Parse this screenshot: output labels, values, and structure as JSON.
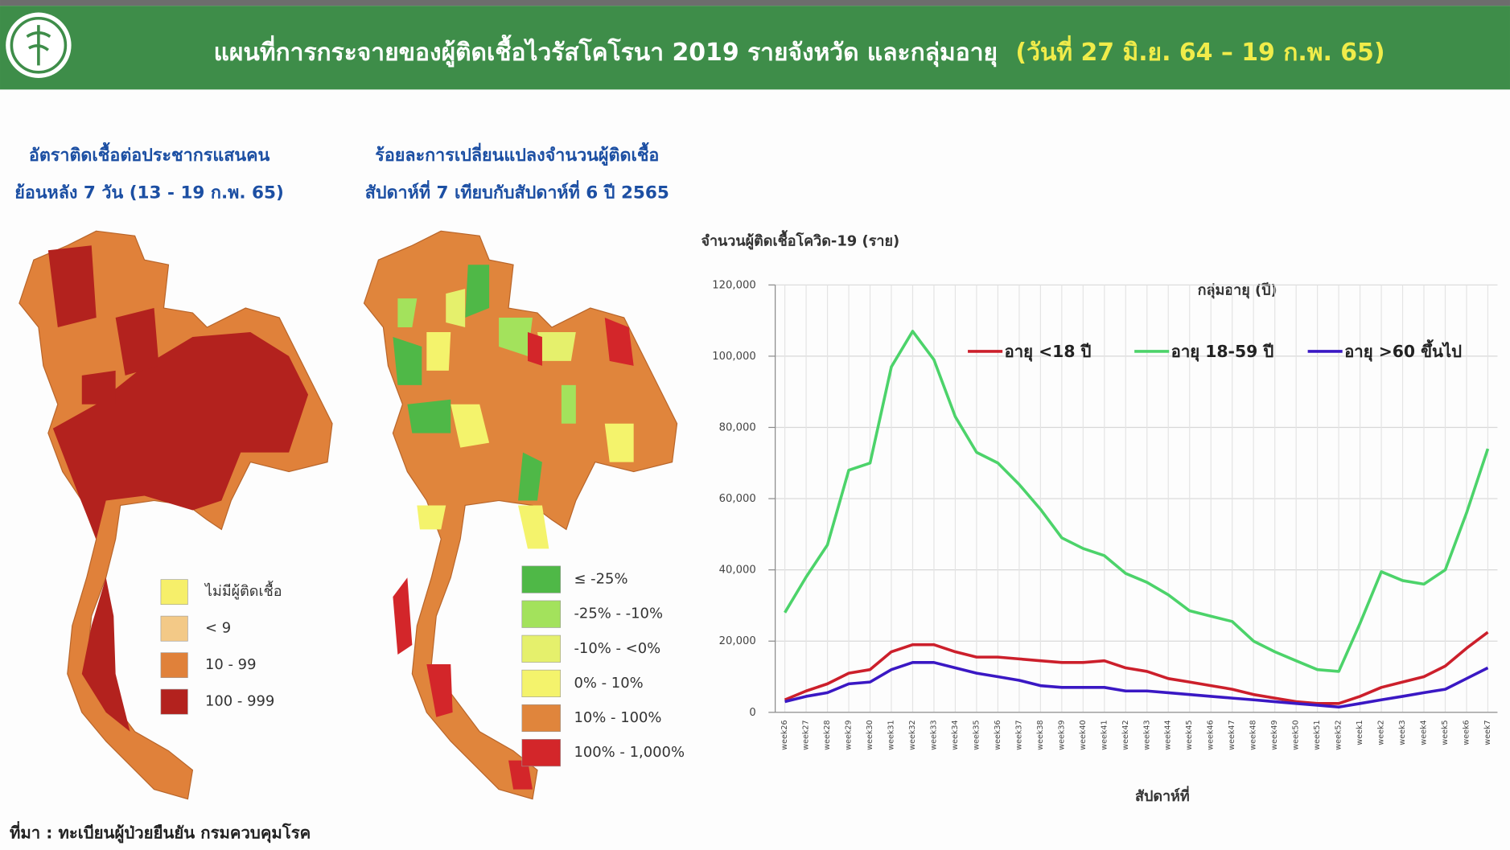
{
  "header": {
    "title": "แผนที่การกระจายของผู้ติดเชื้อไวรัสโคโรนา 2019 รายจังหวัด และกลุ่มอายุ",
    "date_range": "(วันที่ 27 มิ.ย. 64 – 19 ก.พ. 65)"
  },
  "map_left": {
    "title_lines": [
      "อัตราติดเชื้อต่อประชากรแสนคน",
      "ย้อนหลัง 7 วัน (13 - 19 ก.พ. 65)"
    ],
    "legend": [
      {
        "label": "ไม่มีผู้ติดเชื้อ",
        "color": "#f6ef6a"
      },
      {
        "label": "< 9",
        "color": "#f3c987"
      },
      {
        "label": "10 - 99",
        "color": "#e0813a"
      },
      {
        "label": "100 - 999",
        "color": "#b3221e"
      }
    ]
  },
  "map_right": {
    "title_lines": [
      "ร้อยละการเปลี่ยนแปลงจำนวนผู้ติดเชื้อ",
      "สัปดาห์ที่ 7 เทียบกับสัปดาห์ที่ 6 ปี 2565"
    ],
    "legend": [
      {
        "label": "≤ -25%",
        "color": "#4fb847"
      },
      {
        "label": "-25% - -10%",
        "color": "#a3e25c"
      },
      {
        "label": "-10% - <0%",
        "color": "#e5f06c"
      },
      {
        "label": "0% - 10%",
        "color": "#f4f36c"
      },
      {
        "label": "10% - 100%",
        "color": "#e0853c"
      },
      {
        "label": "100% - 1,000%",
        "color": "#d3262a"
      }
    ]
  },
  "source": "ที่มา : ทะเบียนผู้ป่วยยืนยัน กรมควบคุมโรค",
  "chart_data": {
    "type": "line",
    "y_label": "จำนวนผู้ติดเชื้อโควิด-19 (ราย)",
    "x_label": "สัปดาห์ที่",
    "legend_title": "กลุ่มอายุ (ปี)",
    "grid": true,
    "categories": [
      "week26",
      "week27",
      "week28",
      "week29",
      "week30",
      "week31",
      "week32",
      "week33",
      "week34",
      "week35",
      "week36",
      "week37",
      "week38",
      "week39",
      "week40",
      "week41",
      "week42",
      "week43",
      "week44",
      "week45",
      "week46",
      "week47",
      "week48",
      "week49",
      "week50",
      "week51",
      "week52",
      "week1",
      "week2",
      "week3",
      "week4",
      "week5",
      "week6",
      "week7"
    ],
    "ylim": [
      0,
      120000
    ],
    "yticks": [
      0,
      {
        "value": 20000,
        "label": "20,000"
      },
      {
        "value": 40000,
        "label": "40,000"
      },
      {
        "value": 60000,
        "label": "60,000"
      },
      {
        "value": 80000,
        "label": "80,000"
      },
      {
        "value": 100000,
        "label": "100,000"
      },
      {
        "value": 120000,
        "label": "120,000"
      }
    ],
    "series": [
      {
        "name": "อายุ <18 ปี",
        "color": "#cc1f2b",
        "values": [
          3500,
          6000,
          8000,
          11000,
          12000,
          17000,
          19000,
          19000,
          17000,
          15500,
          15500,
          15000,
          14500,
          14000,
          14000,
          14500,
          12500,
          11500,
          9500,
          8500,
          7500,
          6500,
          5000,
          4000,
          3000,
          2500,
          2500,
          4500,
          7000,
          8500,
          10000,
          13000,
          18000,
          22500
        ]
      },
      {
        "name": "อายุ 18-59 ปี",
        "color": "#4cd36a",
        "values": [
          28000,
          38000,
          47000,
          68000,
          70000,
          97000,
          107000,
          99000,
          83000,
          73000,
          70000,
          64000,
          57000,
          49000,
          46000,
          44000,
          39000,
          36500,
          33000,
          28500,
          27000,
          25500,
          20000,
          17000,
          14500,
          12000,
          11500,
          25000,
          39500,
          37000,
          36000,
          40000,
          56000,
          74000
        ]
      },
      {
        "name": "อายุ >60 ขึ้นไป",
        "color": "#3a18c4",
        "values": [
          3000,
          4500,
          5500,
          8000,
          8500,
          12000,
          14000,
          14000,
          12500,
          11000,
          10000,
          9000,
          7500,
          7000,
          7000,
          7000,
          6000,
          6000,
          5500,
          5000,
          4500,
          4000,
          3500,
          3000,
          2500,
          2000,
          1500,
          2500,
          3500,
          4500,
          5500,
          6500,
          9500,
          12500
        ]
      }
    ]
  }
}
